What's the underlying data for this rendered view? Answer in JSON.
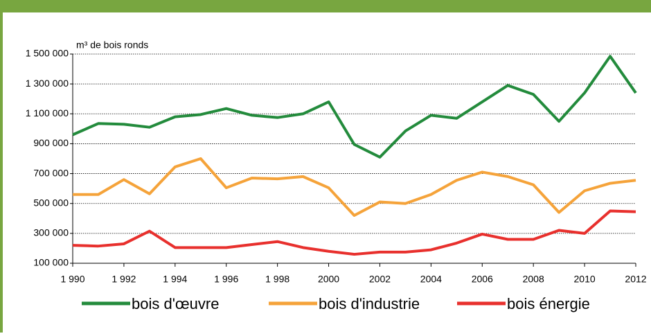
{
  "chart_data": {
    "type": "line",
    "y_label": "m³ de bois ronds",
    "x": [
      1990,
      1991,
      1992,
      1993,
      1994,
      1995,
      1996,
      1997,
      1998,
      1999,
      2000,
      2001,
      2002,
      2003,
      2004,
      2005,
      2006,
      2007,
      2008,
      2009,
      2010,
      2011,
      2012
    ],
    "series": [
      {
        "name": "bois d'œuvre",
        "color": "#238b3c",
        "values": [
          960000,
          1035000,
          1030000,
          1010000,
          1080000,
          1095000,
          1135000,
          1090000,
          1075000,
          1100000,
          1180000,
          895000,
          810000,
          985000,
          1090000,
          1070000,
          1180000,
          1290000,
          1230000,
          1050000,
          1240000,
          1485000,
          1240000
        ]
      },
      {
        "name": "bois d'industrie",
        "color": "#f5a33a",
        "values": [
          560000,
          560000,
          660000,
          565000,
          745000,
          800000,
          605000,
          670000,
          665000,
          680000,
          605000,
          420000,
          510000,
          500000,
          560000,
          655000,
          710000,
          680000,
          625000,
          440000,
          585000,
          635000,
          655000
        ]
      },
      {
        "name": "bois énergie",
        "color": "#e8302d",
        "values": [
          220000,
          215000,
          230000,
          315000,
          205000,
          205000,
          205000,
          225000,
          245000,
          205000,
          180000,
          160000,
          175000,
          175000,
          190000,
          235000,
          295000,
          260000,
          260000,
          320000,
          300000,
          450000,
          445000
        ]
      }
    ],
    "xlim": [
      1990,
      2012
    ],
    "xticks": [
      {
        "value": 1990,
        "label": "1 990"
      },
      {
        "value": 1992,
        "label": "1 992"
      },
      {
        "value": 1994,
        "label": "1 994"
      },
      {
        "value": 1996,
        "label": "1 996"
      },
      {
        "value": 1998,
        "label": "1 998"
      },
      2000,
      2002,
      2004,
      2006,
      2008,
      2010,
      2012
    ],
    "ylim": [
      100000,
      1500000
    ],
    "yticks": [
      {
        "value": 100000,
        "label": "100 000"
      },
      {
        "value": 300000,
        "label": "300 000"
      },
      {
        "value": 500000,
        "label": "500 000"
      },
      {
        "value": 700000,
        "label": "700 000"
      },
      {
        "value": 900000,
        "label": "900 000"
      },
      {
        "value": 1100000,
        "label": "1 100 000"
      },
      {
        "value": 1300000,
        "label": "1 300 000"
      },
      {
        "value": 1500000,
        "label": "1 500 000"
      }
    ],
    "grid": true,
    "legend": "bottom"
  }
}
